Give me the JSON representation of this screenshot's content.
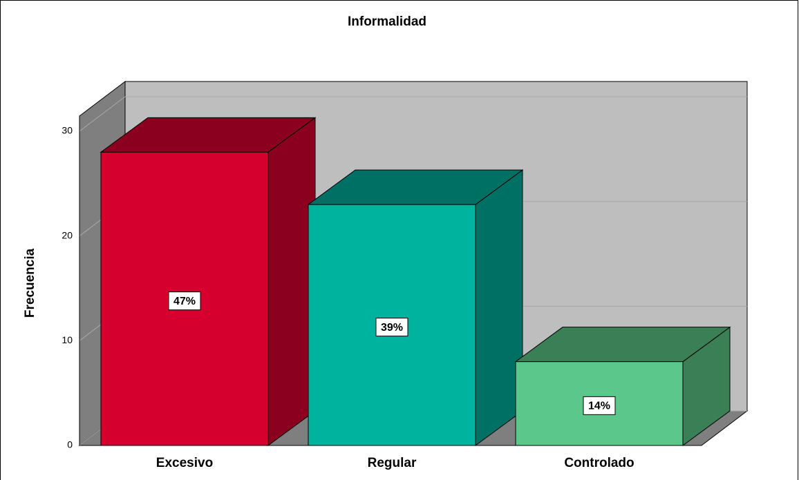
{
  "chart_data": {
    "type": "bar3d",
    "title": "Informalidad",
    "ylabel": "Frecuencia",
    "categories": [
      "Excesivo",
      "Regular",
      "Controlado"
    ],
    "values": [
      28,
      23,
      8
    ],
    "value_labels": [
      "47%",
      "39%",
      "14%"
    ],
    "colors": [
      "#d6002f",
      "#00b39f",
      "#5bc78a"
    ],
    "shade_colors": [
      "#8a001e",
      "#007064",
      "#3a7f56"
    ],
    "ylim": [
      0,
      31.45
    ],
    "yticks": [
      0,
      10,
      20,
      30
    ],
    "grid": true
  }
}
